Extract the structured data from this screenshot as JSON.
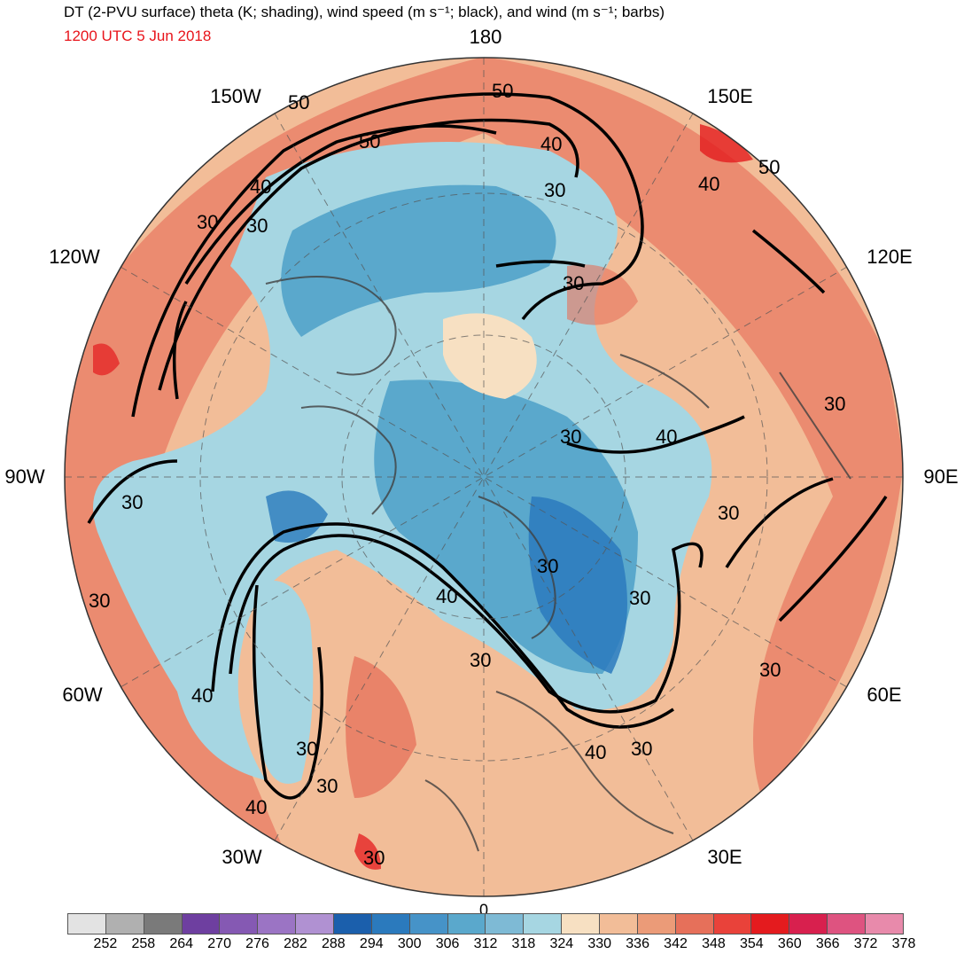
{
  "header": {
    "title": "DT (2-PVU surface) theta (K; shading), wind speed (m s⁻¹; black), and wind (m s⁻¹; barbs)",
    "valid_time": "1200 UTC 5 Jun 2018"
  },
  "longitude_labels": {
    "lon_180": "180",
    "lon_150w": "150W",
    "lon_150e": "150E",
    "lon_120w": "120W",
    "lon_120e": "120E",
    "lon_90w": "90W",
    "lon_90e": "90E",
    "lon_60w": "60W",
    "lon_60e": "60E",
    "lon_30w": "30W",
    "lon_30e": "30E",
    "lon_0": "0"
  },
  "contour_labels": [
    "50",
    "50",
    "50",
    "40",
    "30",
    "30",
    "40",
    "30",
    "30",
    "50",
    "40",
    "30",
    "30",
    "30",
    "40",
    "30",
    "30",
    "30",
    "40",
    "30",
    "30",
    "30",
    "40",
    "30",
    "40",
    "30",
    "40",
    "30",
    "30"
  ],
  "colorbar": {
    "colors": [
      "#e3e3e3",
      "#b0b0b0",
      "#7a7a7a",
      "#6e3fa0",
      "#8559b3",
      "#9b74c4",
      "#b091d2",
      "#1b5fac",
      "#2b7abd",
      "#4693c8",
      "#5aa8cc",
      "#7ebad5",
      "#a6d6e2",
      "#f7e0c2",
      "#f2bd98",
      "#eb9b78",
      "#e6705a",
      "#e9423a",
      "#e41b1e",
      "#d8204e",
      "#de5380",
      "#e88aab"
    ],
    "tick_labels": [
      "252",
      "258",
      "264",
      "270",
      "276",
      "282",
      "288",
      "294",
      "300",
      "306",
      "312",
      "318",
      "324",
      "330",
      "336",
      "342",
      "348",
      "354",
      "360",
      "366",
      "372",
      "378"
    ]
  }
}
